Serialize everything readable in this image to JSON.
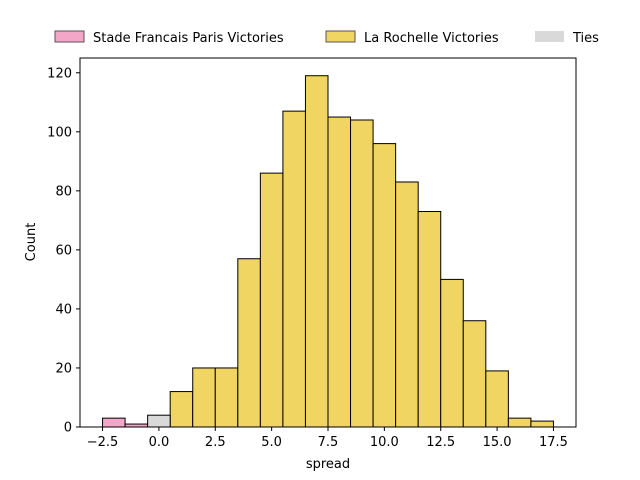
{
  "chart_data": {
    "type": "bar",
    "title": "",
    "xlabel": "spread",
    "ylabel": "Count",
    "xlim": [
      -3.5,
      18.5
    ],
    "ylim": [
      0,
      125
    ],
    "bin_width": 1.0,
    "xticks": [
      -2.5,
      0.0,
      2.5,
      5.0,
      7.5,
      10.0,
      12.5,
      15.0,
      17.5
    ],
    "xtick_labels": [
      "−2.5",
      "0.0",
      "2.5",
      "5.0",
      "7.5",
      "10.0",
      "12.5",
      "15.0",
      "17.5"
    ],
    "yticks": [
      0,
      20,
      40,
      60,
      80,
      100,
      120
    ],
    "ytick_labels": [
      "0",
      "20",
      "40",
      "60",
      "80",
      "100",
      "120"
    ],
    "grid": false,
    "legend_position": "top",
    "series": [
      {
        "name": "Stade Francais Paris Victories",
        "color": "#f4a6c8",
        "bins": [
          {
            "x0": -2.5,
            "x1": -1.5,
            "count": 3
          },
          {
            "x0": -1.5,
            "x1": -0.5,
            "count": 1
          }
        ]
      },
      {
        "name": "La Rochelle Victories",
        "color": "#f0d562",
        "bins": [
          {
            "x0": 0.5,
            "x1": 1.5,
            "count": 12
          },
          {
            "x0": 1.5,
            "x1": 2.5,
            "count": 20
          },
          {
            "x0": 2.5,
            "x1": 3.5,
            "count": 20
          },
          {
            "x0": 3.5,
            "x1": 4.5,
            "count": 57
          },
          {
            "x0": 4.5,
            "x1": 5.5,
            "count": 86
          },
          {
            "x0": 5.5,
            "x1": 6.5,
            "count": 107
          },
          {
            "x0": 6.5,
            "x1": 7.5,
            "count": 119
          },
          {
            "x0": 7.5,
            "x1": 8.5,
            "count": 105
          },
          {
            "x0": 8.5,
            "x1": 9.5,
            "count": 104
          },
          {
            "x0": 9.5,
            "x1": 10.5,
            "count": 96
          },
          {
            "x0": 10.5,
            "x1": 11.5,
            "count": 83
          },
          {
            "x0": 11.5,
            "x1": 12.5,
            "count": 73
          },
          {
            "x0": 12.5,
            "x1": 13.5,
            "count": 50
          },
          {
            "x0": 13.5,
            "x1": 14.5,
            "count": 36
          },
          {
            "x0": 14.5,
            "x1": 15.5,
            "count": 19
          },
          {
            "x0": 15.5,
            "x1": 16.5,
            "count": 3
          },
          {
            "x0": 16.5,
            "x1": 17.5,
            "count": 2
          }
        ]
      },
      {
        "name": "Ties",
        "color": "#d9d9d9",
        "bins": [
          {
            "x0": -0.5,
            "x1": 0.5,
            "count": 4
          }
        ]
      }
    ]
  }
}
